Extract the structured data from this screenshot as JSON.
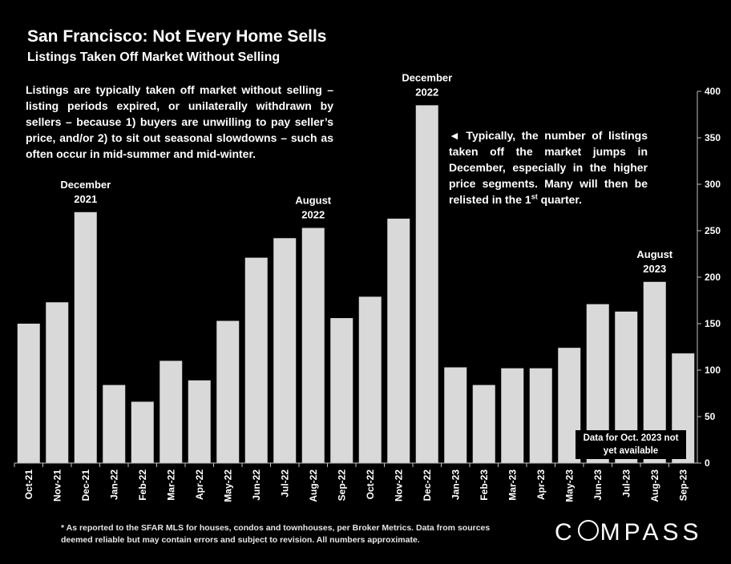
{
  "header": {
    "title": "San Francisco: Not Every Home Sells",
    "subtitle": "Listings Taken Off Market Without Selling"
  },
  "intro_text": "Listings are typically taken off market without selling – listing periods expired, or unilaterally withdrawn by sellers – because 1) buyers are unwilling to pay seller’s price, and/or 2) to sit out seasonal slowdowns – such as often occur in mid-summer and mid-winter.",
  "side_note": {
    "arrow": "◄",
    "text_before": " Typically, the number of listings taken off the market jumps in December, especially in the higher price segments. Many will then be relisted in the 1",
    "superscript": "st",
    "text_after": " quarter."
  },
  "no_data_note": "Data for Oct. 2023 not yet available",
  "footnote": "* As reported to the SFAR MLS for houses, condos and townhouses, per Broker Metrics. Data from sources deemed reliable but may contain errors and subject to revision. All numbers approximate.",
  "logo": {
    "pre": "C",
    "post": "MPASS"
  },
  "colors": {
    "background": "#000000",
    "bar": "#d9d9d9",
    "text": "#ffffff",
    "axis": "#bfbfbf"
  },
  "chart_data": {
    "type": "bar",
    "categories": [
      "Oct-21",
      "Nov-21",
      "Dec-21",
      "Jan-22",
      "Feb-22",
      "Mar-22",
      "Apr-22",
      "May-22",
      "Jun-22",
      "Jul-22",
      "Aug-22",
      "Sep-22",
      "Oct-22",
      "Nov-22",
      "Dec-22",
      "Jan-23",
      "Feb-23",
      "Mar-23",
      "Apr-23",
      "May-23",
      "Jun-23",
      "Jul-23",
      "Aug-23",
      "Sep-23"
    ],
    "values": [
      150,
      173,
      270,
      84,
      66,
      110,
      89,
      153,
      221,
      242,
      253,
      156,
      179,
      263,
      385,
      103,
      84,
      102,
      102,
      124,
      171,
      163,
      195,
      118
    ],
    "ylim": [
      0,
      400
    ],
    "yticks": [
      0,
      50,
      100,
      150,
      200,
      250,
      300,
      350,
      400
    ],
    "y_axis_side": "right",
    "grid": false,
    "annotations": [
      {
        "category": "Dec-21",
        "line1": "December",
        "line2": "2021"
      },
      {
        "category": "Aug-22",
        "line1": "August",
        "line2": "2022"
      },
      {
        "category": "Dec-22",
        "line1": "December",
        "line2": "2022"
      },
      {
        "category": "Aug-23",
        "line1": "August",
        "line2": "2023"
      }
    ]
  }
}
